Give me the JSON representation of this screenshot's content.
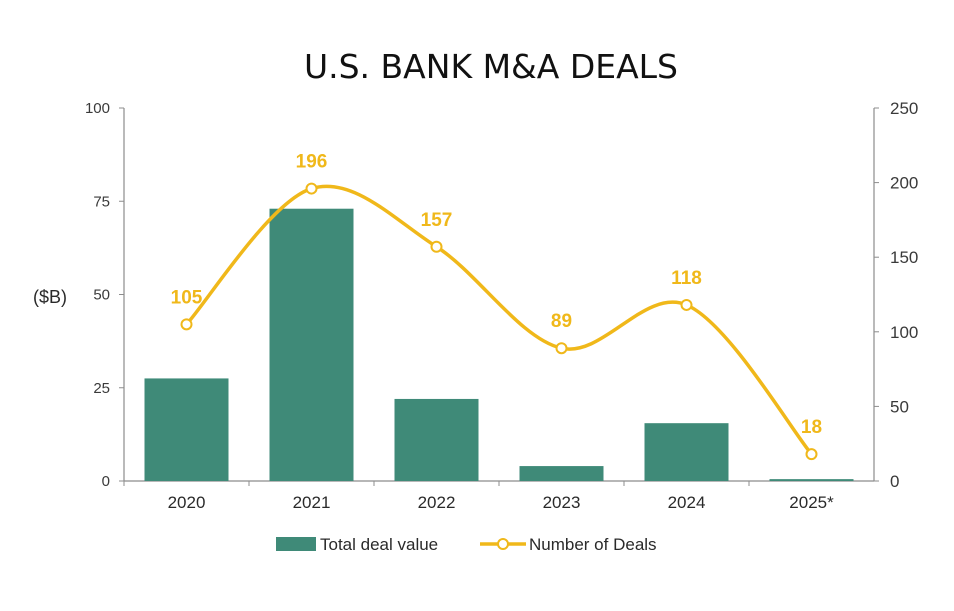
{
  "chart_data": {
    "type": "bar",
    "title": "U.S. BANK M&A DEALS",
    "categories": [
      "2020",
      "2021",
      "2022",
      "2023",
      "2024",
      "2025*"
    ],
    "ylabel": "($B)",
    "ylim": [
      0,
      100
    ],
    "yticks": [
      "0",
      "25",
      "50",
      "75",
      "100"
    ],
    "y2lim": [
      0,
      250
    ],
    "y2ticks": [
      "0",
      "50",
      "100",
      "150",
      "200",
      "250"
    ],
    "grid": false,
    "legend_position": "bottom",
    "series": [
      {
        "name": "Total deal value",
        "type": "bar",
        "axis": "left",
        "values": [
          27.5,
          73,
          22,
          4,
          15.5,
          0.5
        ]
      },
      {
        "name": "Number of Deals",
        "type": "line",
        "axis": "right",
        "smooth": true,
        "values": [
          105,
          196,
          157,
          89,
          118,
          18
        ],
        "labels": [
          "105",
          "196",
          "157",
          "89",
          "118",
          "18"
        ]
      }
    ],
    "colors": {
      "bar": "#3f8a78",
      "line": "#f0b81a",
      "marker_fill": "#ffffff",
      "axis": "#8c8c8c"
    }
  }
}
